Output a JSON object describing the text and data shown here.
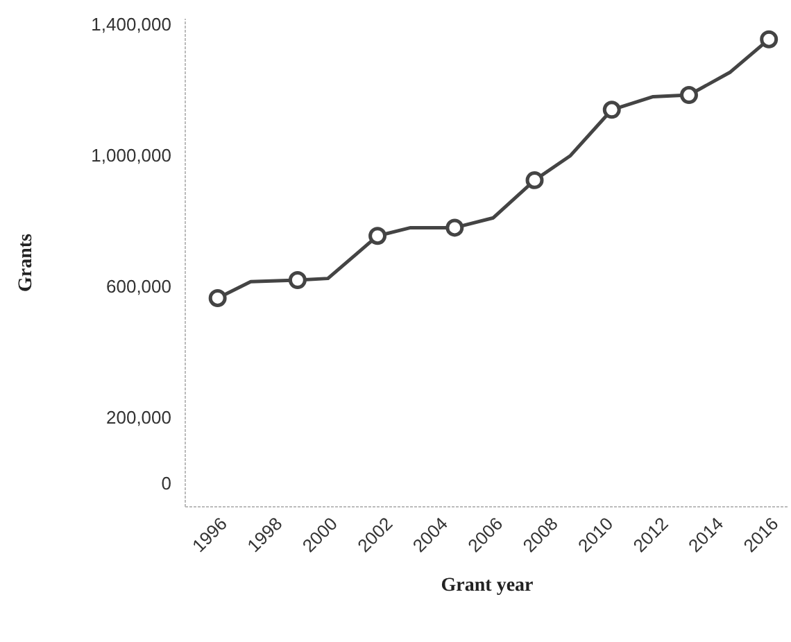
{
  "chart_data": {
    "type": "line",
    "xlabel": "Grant year",
    "ylabel": "Grants",
    "xlim": [
      1994.8,
      2016.7
    ],
    "xticks": [
      1996,
      1998,
      2000,
      2002,
      2004,
      2006,
      2008,
      2010,
      2012,
      2014,
      2016
    ],
    "ylim": [
      -70000,
      1420000
    ],
    "yticks": [
      0,
      {
        "value": 200000,
        "label": "200,000"
      },
      {
        "value": 600000,
        "label": "600,000"
      },
      {
        "value": 1000000,
        "label": "1,000,000"
      },
      {
        "value": 1400000,
        "label": "1,400,000"
      }
    ],
    "series": [
      {
        "color": "#444444",
        "marker": "none",
        "x": [
          1996,
          1997.2,
          1998.9,
          2000,
          2001.8,
          2003,
          2004.6,
          2006,
          2007.5,
          2008.8,
          2010.3,
          2011.8,
          2013.1,
          2014.6,
          2016
        ],
        "values": [
          565000,
          615000,
          620000,
          625000,
          755000,
          780000,
          780000,
          810000,
          925000,
          1000000,
          1140000,
          1180000,
          1185000,
          1255000,
          1355000
        ]
      },
      {
        "type": "scatter",
        "color": "#444444",
        "marker": "circle",
        "x": [
          1996,
          1998.9,
          2001.8,
          2004.6,
          2007.5,
          2010.3,
          2013.1,
          2016
        ],
        "values": [
          565000,
          620000,
          755000,
          780000,
          925000,
          1140000,
          1185000,
          1355000
        ]
      }
    ],
    "grid": false
  }
}
